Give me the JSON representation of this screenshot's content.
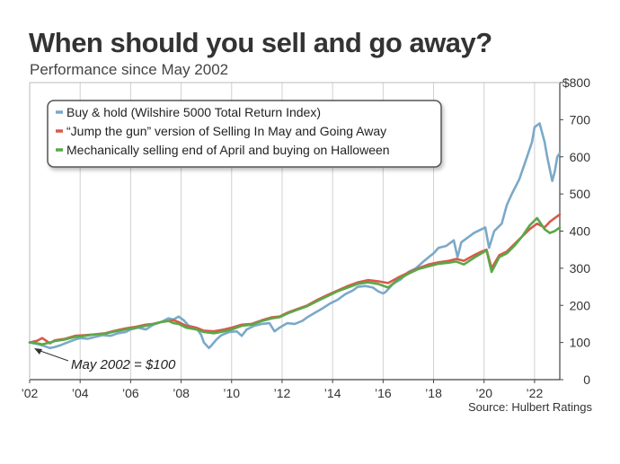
{
  "title": "When should you sell and go away?",
  "subtitle": "Performance since May 2002",
  "source": "Source: Hulbert Ratings",
  "chart_data": {
    "type": "line",
    "title": "When should you sell and go away?",
    "subtitle": "Performance since May 2002",
    "xlabel": "",
    "ylabel": "",
    "xlim": [
      2002,
      2023
    ],
    "ylim": [
      0,
      800
    ],
    "x_ticks": [
      2002,
      2004,
      2006,
      2008,
      2010,
      2012,
      2014,
      2016,
      2018,
      2020,
      2022
    ],
    "x_tick_labels": [
      "’02",
      "’04",
      "’06",
      "’08",
      "’10",
      "’12",
      "’14",
      "’16",
      "’18",
      "’20",
      "’22"
    ],
    "y_ticks": [
      0,
      100,
      200,
      300,
      400,
      500,
      600,
      700,
      800
    ],
    "y_tick_labels": [
      "0",
      "100",
      "200",
      "300",
      "400",
      "500",
      "600",
      "700",
      "$800"
    ],
    "grid": "vertical",
    "legend_position": "top-left",
    "annotation": {
      "text": "May 2002 = $100",
      "x": 2002.0,
      "y": 100
    },
    "series": [
      {
        "name": "Buy & hold (Wilshire 5000 Total Return Index)",
        "color": "#7ba9c8",
        "x": [
          2002.0,
          2002.3,
          2002.6,
          2002.8,
          2003.0,
          2003.2,
          2003.5,
          2003.8,
          2004.0,
          2004.3,
          2004.6,
          2004.9,
          2005.2,
          2005.5,
          2005.8,
          2006.0,
          2006.3,
          2006.6,
          2006.9,
          2007.2,
          2007.5,
          2007.7,
          2007.9,
          2008.1,
          2008.3,
          2008.6,
          2008.8,
          2008.9,
          2009.1,
          2009.2,
          2009.4,
          2009.6,
          2009.9,
          2010.2,
          2010.4,
          2010.6,
          2010.9,
          2011.2,
          2011.5,
          2011.7,
          2011.9,
          2012.2,
          2012.5,
          2012.8,
          2013.0,
          2013.3,
          2013.6,
          2013.9,
          2014.2,
          2014.5,
          2014.8,
          2015.0,
          2015.3,
          2015.6,
          2015.8,
          2016.0,
          2016.1,
          2016.4,
          2016.7,
          2017.0,
          2017.3,
          2017.6,
          2017.9,
          2018.0,
          2018.2,
          2018.5,
          2018.8,
          2018.95,
          2019.1,
          2019.4,
          2019.6,
          2019.9,
          2020.05,
          2020.2,
          2020.4,
          2020.7,
          2020.9,
          2021.1,
          2021.4,
          2021.7,
          2021.9,
          2022.0,
          2022.2,
          2022.4,
          2022.5,
          2022.7,
          2022.8,
          2022.9,
          2023.0
        ],
        "y": [
          100,
          96,
          90,
          85,
          88,
          92,
          100,
          108,
          112,
          110,
          115,
          120,
          118,
          125,
          128,
          135,
          140,
          135,
          148,
          155,
          165,
          162,
          170,
          160,
          145,
          140,
          120,
          100,
          85,
          92,
          108,
          120,
          128,
          130,
          118,
          135,
          145,
          150,
          152,
          130,
          140,
          152,
          150,
          158,
          168,
          180,
          192,
          205,
          215,
          230,
          240,
          250,
          252,
          248,
          238,
          232,
          236,
          258,
          270,
          290,
          300,
          318,
          335,
          340,
          355,
          360,
          375,
          330,
          370,
          385,
          395,
          405,
          410,
          355,
          400,
          420,
          470,
          500,
          540,
          600,
          640,
          680,
          690,
          640,
          600,
          535,
          560,
          600,
          610
        ]
      },
      {
        "name": "“Jump the gun” version of Selling In May and Going Away",
        "color": "#d9594a",
        "x": [
          2002.0,
          2002.3,
          2002.5,
          2002.8,
          2003.0,
          2003.4,
          2003.8,
          2004.2,
          2004.6,
          2005.0,
          2005.4,
          2005.8,
          2006.2,
          2006.6,
          2006.9,
          2007.2,
          2007.5,
          2007.7,
          2007.9,
          2008.2,
          2008.6,
          2008.9,
          2009.3,
          2009.7,
          2010.0,
          2010.4,
          2010.8,
          2011.2,
          2011.6,
          2011.9,
          2012.2,
          2012.6,
          2013.0,
          2013.4,
          2013.8,
          2014.2,
          2014.6,
          2015.0,
          2015.4,
          2015.8,
          2016.2,
          2016.6,
          2017.0,
          2017.4,
          2017.8,
          2018.2,
          2018.6,
          2018.9,
          2019.2,
          2019.6,
          2019.9,
          2020.1,
          2020.3,
          2020.6,
          2020.9,
          2021.2,
          2021.5,
          2021.8,
          2022.1,
          2022.4,
          2022.6,
          2022.8,
          2023.0
        ],
        "y": [
          100,
          105,
          112,
          98,
          106,
          110,
          118,
          120,
          122,
          125,
          132,
          138,
          142,
          148,
          150,
          155,
          158,
          160,
          155,
          145,
          140,
          132,
          130,
          135,
          140,
          148,
          150,
          160,
          168,
          170,
          180,
          190,
          200,
          215,
          228,
          240,
          252,
          262,
          268,
          265,
          260,
          275,
          288,
          300,
          310,
          316,
          320,
          325,
          320,
          335,
          345,
          350,
          300,
          335,
          345,
          365,
          385,
          405,
          420,
          410,
          425,
          435,
          445
        ]
      },
      {
        "name": "Mechanically selling end of April and buying on Halloween",
        "color": "#5aa848",
        "x": [
          2002.0,
          2002.3,
          2002.5,
          2002.8,
          2003.0,
          2003.4,
          2003.8,
          2004.2,
          2004.6,
          2005.0,
          2005.4,
          2005.8,
          2006.2,
          2006.6,
          2006.9,
          2007.2,
          2007.5,
          2007.7,
          2007.9,
          2008.2,
          2008.6,
          2008.9,
          2009.3,
          2009.7,
          2010.0,
          2010.4,
          2010.8,
          2011.2,
          2011.6,
          2011.9,
          2012.2,
          2012.6,
          2013.0,
          2013.4,
          2013.8,
          2014.2,
          2014.6,
          2015.0,
          2015.4,
          2015.8,
          2016.2,
          2016.6,
          2017.0,
          2017.4,
          2017.8,
          2018.2,
          2018.6,
          2018.9,
          2019.2,
          2019.6,
          2019.9,
          2020.1,
          2020.3,
          2020.6,
          2020.9,
          2021.2,
          2021.5,
          2021.8,
          2022.1,
          2022.4,
          2022.6,
          2022.8,
          2023.0
        ],
        "y": [
          100,
          98,
          95,
          100,
          104,
          108,
          115,
          118,
          122,
          124,
          130,
          135,
          140,
          145,
          150,
          155,
          158,
          152,
          150,
          140,
          135,
          128,
          125,
          130,
          135,
          145,
          148,
          158,
          165,
          168,
          178,
          188,
          198,
          212,
          225,
          238,
          248,
          258,
          262,
          258,
          248,
          270,
          285,
          298,
          305,
          312,
          315,
          318,
          310,
          328,
          340,
          348,
          290,
          330,
          340,
          360,
          385,
          415,
          435,
          405,
          395,
          400,
          410
        ]
      }
    ]
  }
}
